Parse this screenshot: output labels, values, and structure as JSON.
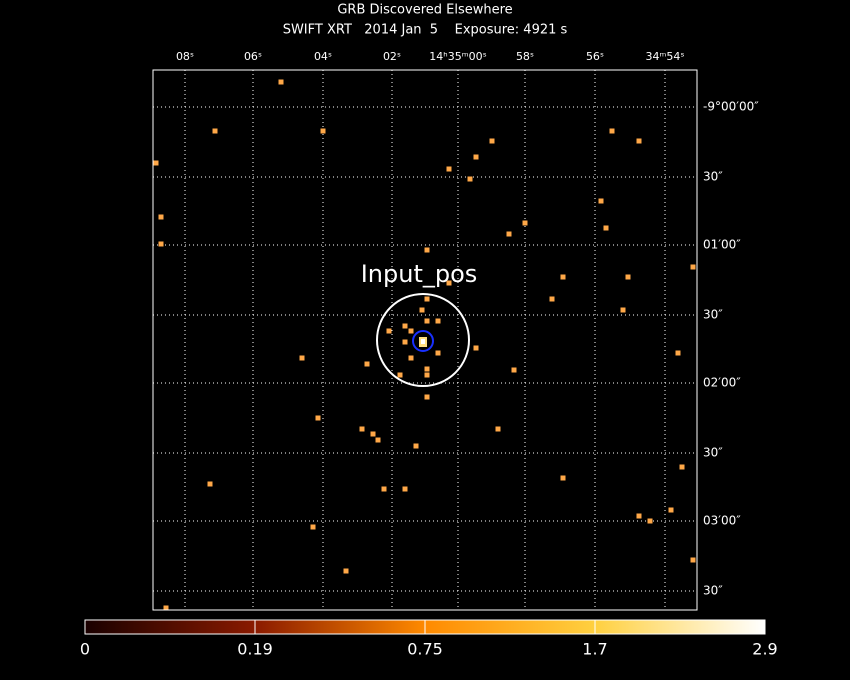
{
  "header": {
    "title": "GRB Discovered Elsewhere",
    "subtitle": "SWIFT XRT   2014 Jan  5    Exposure: 4921 s"
  },
  "ra_ticks": [
    "08ˢ",
    "06ˢ",
    "04ˢ",
    "02ˢ",
    "14ʰ35ᵐ00ˢ",
    "58ˢ",
    "56ˢ",
    "34ᵐ54ˢ"
  ],
  "dec_ticks": [
    "-9°00′00″",
    "30″",
    "01′00″",
    "30″",
    "02′00″",
    "30″",
    "03′00″",
    "30″"
  ],
  "annotation": "Input_pos",
  "colorbar_labels": [
    "0",
    "0.19",
    "0.75",
    "1.7",
    "2.9"
  ]
}
